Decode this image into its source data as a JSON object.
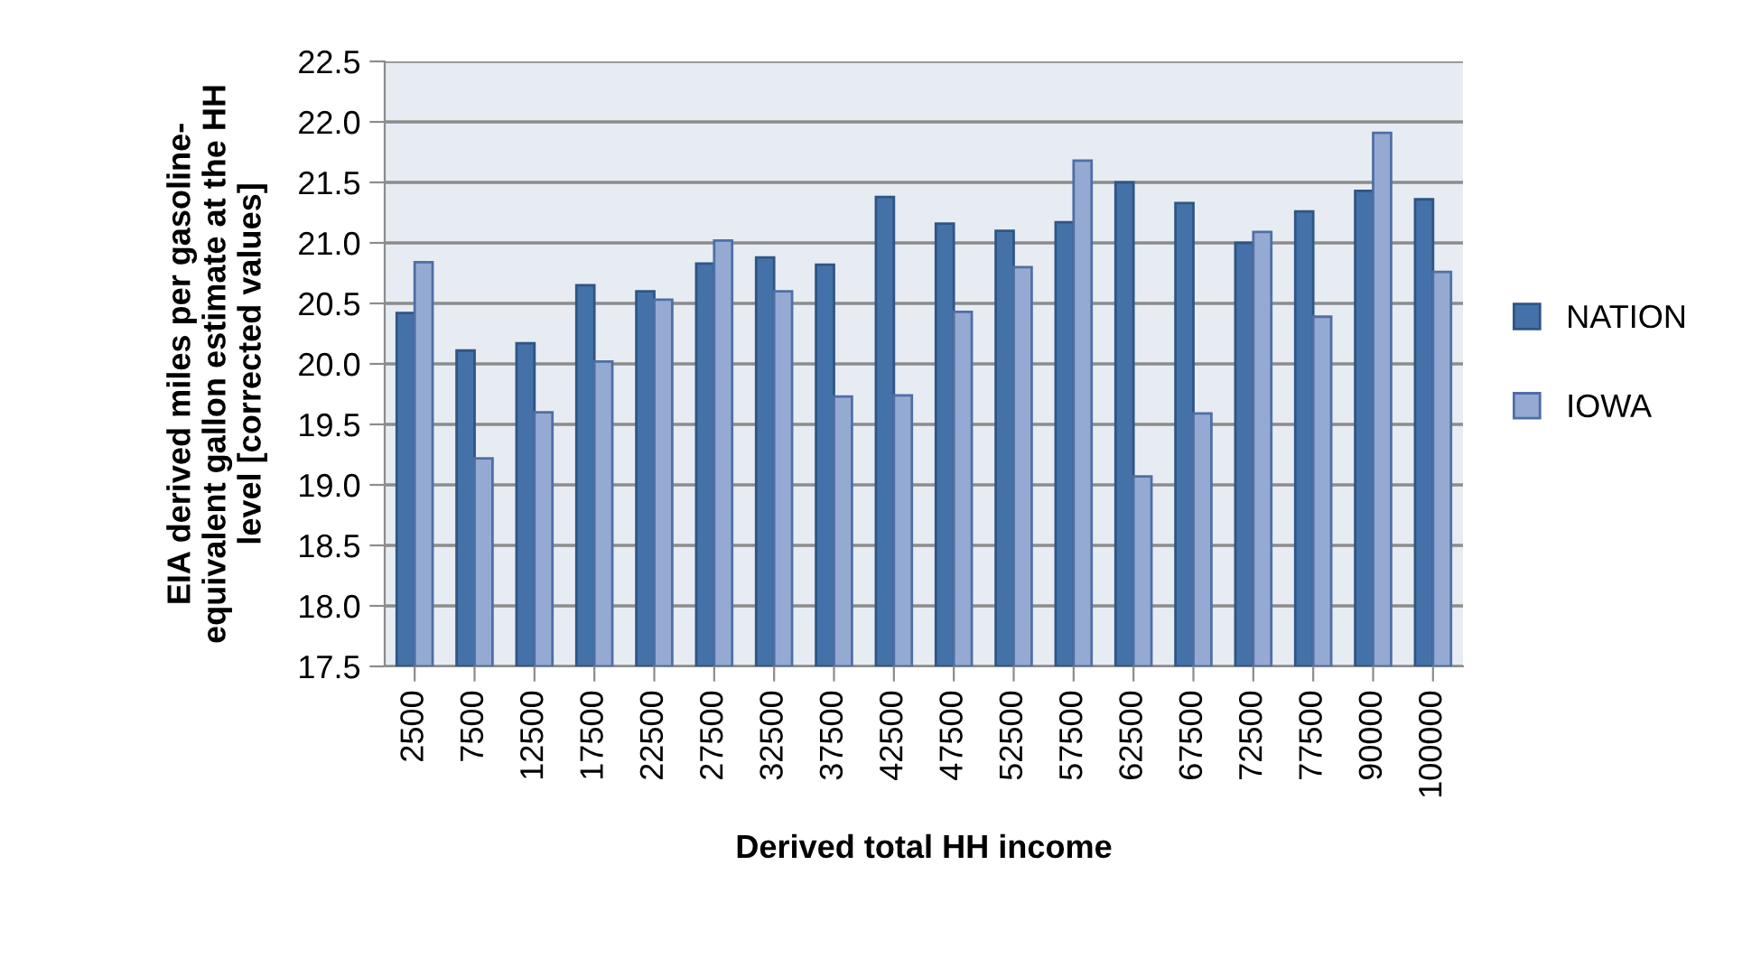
{
  "chart_data": {
    "type": "bar",
    "xlabel": "Derived total HH income",
    "ylabel": "EIA derived miles per gasoline-\nequivalent gallon estimate at the HH\nlevel [corrected values]",
    "categories": [
      "2500",
      "7500",
      "12500",
      "17500",
      "22500",
      "27500",
      "32500",
      "37500",
      "42500",
      "47500",
      "52500",
      "57500",
      "62500",
      "67500",
      "72500",
      "77500",
      "90000",
      "100000"
    ],
    "series": [
      {
        "name": "NATION",
        "color": "#4472a8",
        "values": [
          20.42,
          20.11,
          20.17,
          20.65,
          20.6,
          20.83,
          20.88,
          20.82,
          21.38,
          21.16,
          21.1,
          21.17,
          21.5,
          21.33,
          21.0,
          21.26,
          21.43,
          21.36
        ]
      },
      {
        "name": "IOWA",
        "color": "#95aad3",
        "values": [
          20.84,
          19.22,
          19.6,
          20.02,
          20.53,
          21.02,
          20.6,
          19.73,
          19.74,
          20.43,
          20.8,
          21.68,
          19.07,
          19.59,
          21.09,
          20.39,
          21.91,
          20.76
        ]
      }
    ],
    "ylim": [
      17.5,
      22.5
    ],
    "yticks": [
      {
        "value": 17.5,
        "label": "17.5"
      },
      {
        "value": 18,
        "label": "18.0"
      },
      {
        "value": 18.5,
        "label": "18.5"
      },
      {
        "value": 19,
        "label": "19.0"
      },
      {
        "value": 19.5,
        "label": "19.5"
      },
      {
        "value": 20,
        "label": "20.0"
      },
      {
        "value": 20.5,
        "label": "20.5"
      },
      {
        "value": 21,
        "label": "21.0"
      },
      {
        "value": 21.5,
        "label": "21.5"
      },
      {
        "value": 22,
        "label": "22.0"
      },
      {
        "value": 22.5,
        "label": "22.5"
      }
    ],
    "grid": "y",
    "legend": "right"
  }
}
